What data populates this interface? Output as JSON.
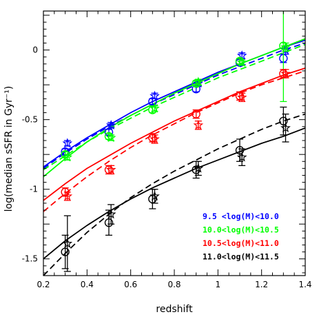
{
  "chart_data": {
    "type": "line",
    "xlabel": "redshift",
    "ylabel": "log(median sSFR in Gyr⁻¹)",
    "xlim": [
      0.2,
      1.4
    ],
    "ylim": [
      -1.62,
      0.28
    ],
    "x_ticks": [
      "0.2",
      "0.4",
      "0.6",
      "0.8",
      "1",
      "1.2",
      "1.4"
    ],
    "y_ticks": [
      "0",
      "-0.5",
      "-1",
      "-1.5"
    ],
    "grid": false,
    "legend_position": "bottom-right",
    "series": [
      {
        "name": "9.5  <log(M)<10.0",
        "color": "#0000ff",
        "circles": {
          "x": [
            0.3,
            0.5,
            0.7,
            0.9,
            1.1,
            1.3
          ],
          "y": [
            -0.73,
            -0.59,
            -0.37,
            -0.28,
            -0.09,
            -0.06
          ],
          "err": [
            0.02,
            0.02,
            0.02,
            0.02,
            0.02,
            0.03
          ]
        },
        "stars": {
          "x": [
            0.31,
            0.51,
            0.71,
            0.91,
            1.11,
            1.31
          ],
          "y": [
            -0.67,
            -0.54,
            -0.33,
            -0.24,
            -0.04,
            0.0
          ],
          "err": [
            0.02,
            0.02,
            0.02,
            0.02,
            0.02,
            0.03
          ]
        },
        "fit_solid": {
          "a": -0.0048,
          "b": 0.728,
          "c": -0.45
        },
        "fit_dashed": {
          "a": 0.0,
          "b": 0.0,
          "c": 0.0,
          "show": false
        }
      },
      {
        "name": "10.0<log(M)<10.5",
        "color": "#00ff00",
        "circles": {
          "x": [
            0.3,
            0.5,
            0.7,
            0.9,
            1.1,
            1.3
          ],
          "y": [
            -0.75,
            -0.62,
            -0.43,
            -0.24,
            -0.08,
            0.03
          ],
          "err": [
            0.02,
            0.02,
            0.02,
            0.02,
            0.02,
            0.4
          ]
        },
        "stars": {
          "x": [
            0.31,
            0.51,
            0.71,
            0.91,
            1.11,
            1.31
          ],
          "y": [
            -0.77,
            -0.63,
            -0.42,
            -0.23,
            -0.09,
            0.02
          ],
          "err": [
            0.02,
            0.02,
            0.02,
            0.02,
            0.02,
            0.03
          ]
        },
        "fit_solid": {
          "a": 0.0,
          "b": 0.0,
          "c": 0.0
        },
        "fit_dashed": {
          "a": 0.0,
          "b": 0.0,
          "c": 0.0,
          "show": true
        }
      },
      {
        "name": "10.5<log(M)<11.0",
        "color": "#ff0000",
        "circles": {
          "x": [
            0.3,
            0.5,
            0.7,
            0.9,
            1.1,
            1.3
          ],
          "y": [
            -1.02,
            -0.86,
            -0.63,
            -0.46,
            -0.33,
            -0.17
          ],
          "err": [
            0.03,
            0.03,
            0.03,
            0.03,
            0.03,
            0.03
          ]
        },
        "stars": {
          "x": [
            0.31,
            0.51,
            0.71,
            0.91,
            1.11,
            1.31
          ],
          "y": [
            -1.05,
            -0.86,
            -0.64,
            -0.54,
            -0.34,
            -0.17
          ],
          "err": [
            0.03,
            0.03,
            0.03,
            0.03,
            0.03,
            0.03
          ]
        },
        "fit_solid": {
          "a": 0.0,
          "b": 0.0,
          "c": 0.0
        },
        "fit_dashed": {
          "a": 0.0,
          "b": 0.0,
          "c": 0.0,
          "show": true
        }
      },
      {
        "name": "11.0<log(M)<11.5",
        "color": "#000000",
        "circles": {
          "x": [
            0.3,
            0.5,
            0.7,
            0.9,
            1.1,
            1.3
          ],
          "y": [
            -1.45,
            -1.24,
            -1.07,
            -0.86,
            -0.72,
            -0.51
          ],
          "err": [
            0.12,
            0.09,
            0.07,
            0.06,
            0.08,
            0.1
          ]
        },
        "stars": {
          "x": [
            0.31,
            0.51,
            0.71,
            0.91,
            1.11,
            1.31
          ],
          "y": [
            -1.39,
            -1.18,
            -1.05,
            -0.85,
            -0.77,
            -0.56
          ],
          "err": [
            0.2,
            0.07,
            0.05,
            0.05,
            0.06,
            0.1
          ]
        },
        "fit_solid": {
          "a": 0.0,
          "b": 0.0,
          "c": 0.0
        },
        "fit_dashed": {
          "a": 0.0,
          "b": 0.0,
          "c": 0.0,
          "show": true
        }
      }
    ],
    "fit_curves": [
      {
        "series": 0,
        "style": "solid",
        "x": [
          0.2,
          0.3,
          0.4,
          0.5,
          0.6,
          0.7,
          0.8,
          0.9,
          1.0,
          1.1,
          1.2,
          1.3,
          1.4
        ],
        "y": [
          -0.84,
          -0.73,
          -0.63,
          -0.54,
          -0.45,
          -0.37,
          -0.3,
          -0.23,
          -0.16,
          -0.1,
          -0.04,
          0.02,
          0.07
        ]
      },
      {
        "series": 0,
        "style": "dashed",
        "x": [
          0.2,
          0.3,
          0.4,
          0.5,
          0.6,
          0.7,
          0.8,
          0.9,
          1.0,
          1.1,
          1.2,
          1.3,
          1.4
        ],
        "y": [
          -0.85,
          -0.74,
          -0.64,
          -0.55,
          -0.47,
          -0.39,
          -0.32,
          -0.25,
          -0.18,
          -0.12,
          -0.06,
          0.0,
          0.05
        ]
      },
      {
        "series": 1,
        "style": "solid",
        "x": [
          0.2,
          0.3,
          0.4,
          0.5,
          0.6,
          0.7,
          0.8,
          0.9,
          1.0,
          1.1,
          1.2,
          1.3,
          1.4
        ],
        "y": [
          -0.91,
          -0.78,
          -0.66,
          -0.56,
          -0.47,
          -0.39,
          -0.31,
          -0.24,
          -0.17,
          -0.1,
          -0.04,
          0.02,
          0.08
        ]
      },
      {
        "series": 1,
        "style": "dashed",
        "x": [
          0.2,
          0.3,
          0.4,
          0.5,
          0.6,
          0.7,
          0.8,
          0.9,
          1.0,
          1.1,
          1.2,
          1.3,
          1.4
        ],
        "y": [
          -0.86,
          -0.76,
          -0.66,
          -0.57,
          -0.49,
          -0.41,
          -0.34,
          -0.27,
          -0.2,
          -0.14,
          -0.08,
          -0.02,
          0.04
        ]
      },
      {
        "series": 2,
        "style": "solid",
        "x": [
          0.2,
          0.3,
          0.4,
          0.5,
          0.6,
          0.7,
          0.8,
          0.9,
          1.0,
          1.1,
          1.2,
          1.3,
          1.4
        ],
        "y": [
          -1.08,
          -0.96,
          -0.85,
          -0.76,
          -0.67,
          -0.59,
          -0.51,
          -0.44,
          -0.37,
          -0.3,
          -0.24,
          -0.18,
          -0.13
        ]
      },
      {
        "series": 2,
        "style": "dashed",
        "x": [
          0.2,
          0.3,
          0.4,
          0.5,
          0.6,
          0.7,
          0.8,
          0.9,
          1.0,
          1.1,
          1.2,
          1.3,
          1.4
        ],
        "y": [
          -1.16,
          -1.03,
          -0.91,
          -0.8,
          -0.7,
          -0.61,
          -0.53,
          -0.45,
          -0.38,
          -0.31,
          -0.25,
          -0.2,
          -0.15
        ]
      },
      {
        "series": 3,
        "style": "solid",
        "x": [
          0.2,
          0.3,
          0.4,
          0.5,
          0.6,
          0.7,
          0.8,
          0.9,
          1.0,
          1.1,
          1.2,
          1.3,
          1.4
        ],
        "y": [
          -1.5,
          -1.37,
          -1.26,
          -1.16,
          -1.07,
          -0.99,
          -0.92,
          -0.85,
          -0.79,
          -0.73,
          -0.67,
          -0.62,
          -0.56
        ]
      },
      {
        "series": 3,
        "style": "dashed",
        "x": [
          0.2,
          0.3,
          0.4,
          0.5,
          0.6,
          0.7,
          0.8,
          0.9,
          1.0,
          1.1,
          1.2,
          1.3,
          1.4
        ],
        "y": [
          -1.62,
          -1.46,
          -1.31,
          -1.18,
          -1.06,
          -0.96,
          -0.87,
          -0.79,
          -0.71,
          -0.64,
          -0.57,
          -0.51,
          -0.46
        ]
      }
    ]
  }
}
